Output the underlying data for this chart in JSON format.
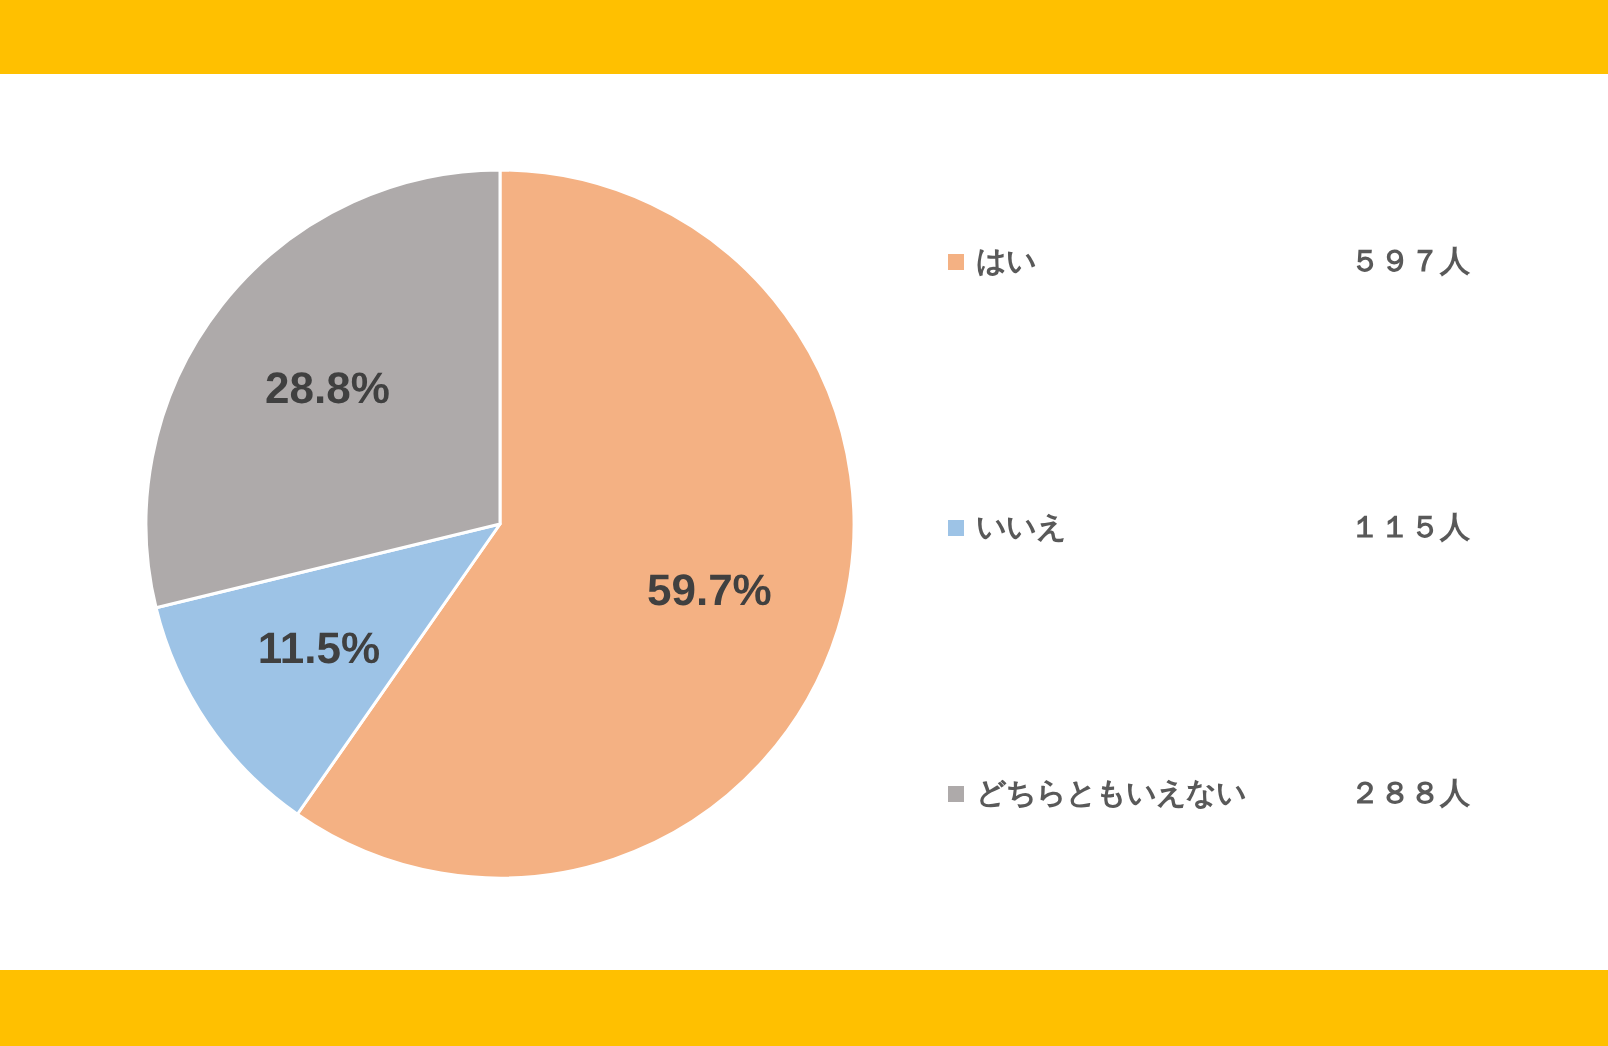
{
  "chart_data": {
    "type": "pie",
    "categories": [
      "はい",
      "いいえ",
      "どちらともいえない"
    ],
    "values": [
      59.7,
      11.5,
      28.8
    ],
    "colors": [
      "#f4b183",
      "#9dc3e6",
      "#aeaaaa"
    ],
    "value_labels": [
      "59.7%",
      "11.5%",
      "28.8%"
    ],
    "annotations": [
      "５９７人",
      "１１５人",
      "２８８人"
    ],
    "legend": "right"
  }
}
